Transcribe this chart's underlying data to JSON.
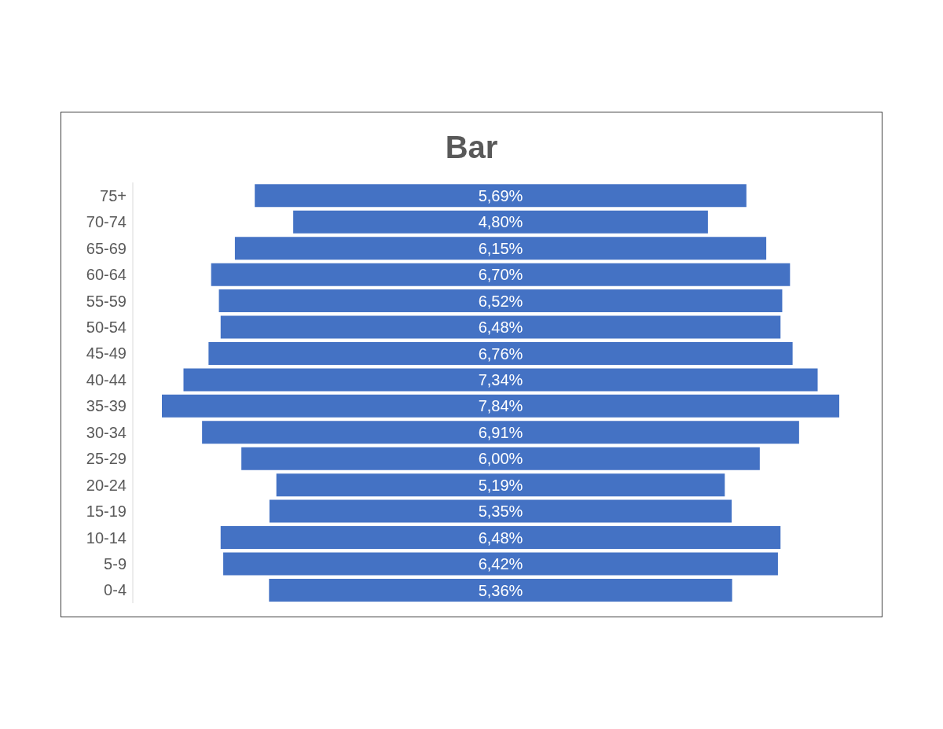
{
  "chart_data": {
    "type": "other",
    "title": "Bar",
    "categories": [
      "75+",
      "70-74",
      "65-69",
      "60-64",
      "55-59",
      "50-54",
      "45-49",
      "40-44",
      "35-39",
      "30-34",
      "25-29",
      "20-24",
      "15-19",
      "10-14",
      "5-9",
      "0-4"
    ],
    "values": [
      5.69,
      4.8,
      6.15,
      6.7,
      6.52,
      6.48,
      6.76,
      7.34,
      7.84,
      6.91,
      6.0,
      5.19,
      5.35,
      6.48,
      6.42,
      5.36
    ],
    "value_labels": [
      "5,69%",
      "4,80%",
      "6,15%",
      "6,70%",
      "6,52%",
      "6,48%",
      "6,76%",
      "7,34%",
      "7,84%",
      "6,91%",
      "6,00%",
      "5,19%",
      "5,35%",
      "6,48%",
      "6,42%",
      "5,36%"
    ],
    "color": "#4472c4"
  }
}
